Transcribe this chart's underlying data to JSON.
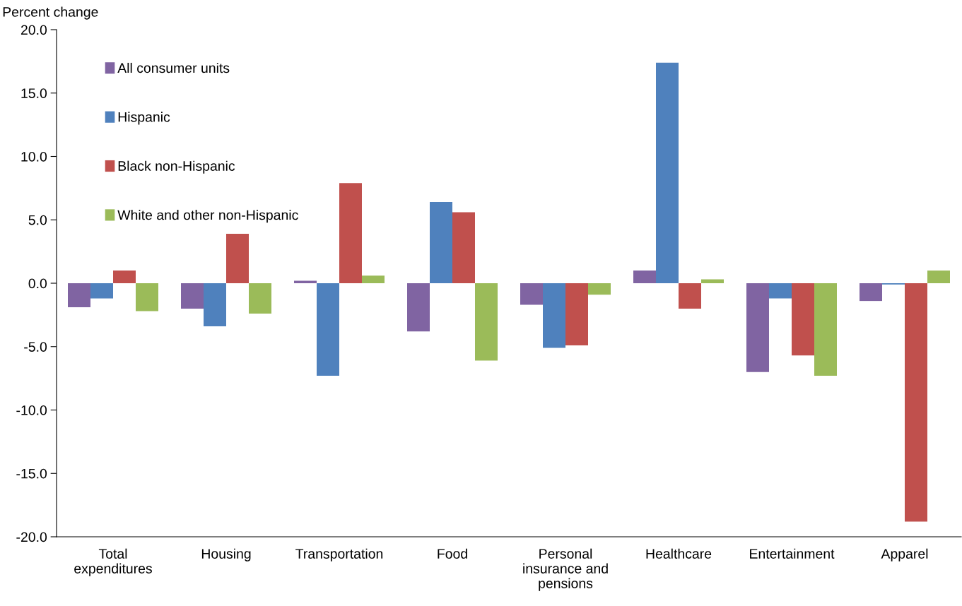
{
  "chart_data": {
    "type": "bar",
    "ylabel": "Percent change",
    "categories": [
      "Total\nexpenditures",
      "Housing",
      "Transportation",
      "Food",
      "Personal\ninsurance and\npensions",
      "Healthcare",
      "Entertainment",
      "Apparel"
    ],
    "series": [
      {
        "name": "All consumer units",
        "color": "#8064a2",
        "values": [
          -1.9,
          -2.0,
          0.2,
          -3.8,
          -1.7,
          1.0,
          -7.0,
          -1.4
        ]
      },
      {
        "name": "Hispanic",
        "color": "#4f81bd",
        "values": [
          -1.2,
          -3.4,
          -7.3,
          6.4,
          -5.1,
          17.4,
          -1.2,
          -0.1
        ]
      },
      {
        "name": "Black non-Hispanic",
        "color": "#c0504d",
        "values": [
          1.0,
          3.9,
          7.9,
          5.6,
          -4.9,
          -2.0,
          -5.7,
          -18.8
        ]
      },
      {
        "name": "White and other non-Hispanic",
        "color": "#9bbb59",
        "values": [
          -2.2,
          -2.4,
          0.6,
          -6.1,
          -0.9,
          0.3,
          -7.3,
          1.0
        ]
      }
    ],
    "ylim": [
      -20,
      20
    ],
    "yticks": [
      {
        "value": -20,
        "label": "-20.0"
      },
      {
        "value": -15,
        "label": "-15.0"
      },
      {
        "value": -10,
        "label": "-10.0"
      },
      {
        "value": -5,
        "label": "-5.0"
      },
      {
        "value": 0,
        "label": "0.0"
      },
      {
        "value": 5,
        "label": "5.0"
      },
      {
        "value": 10,
        "label": "10.0"
      },
      {
        "value": 15,
        "label": "15.0"
      },
      {
        "value": 20,
        "label": "20.0"
      }
    ],
    "grid": false,
    "legend": "top left"
  }
}
